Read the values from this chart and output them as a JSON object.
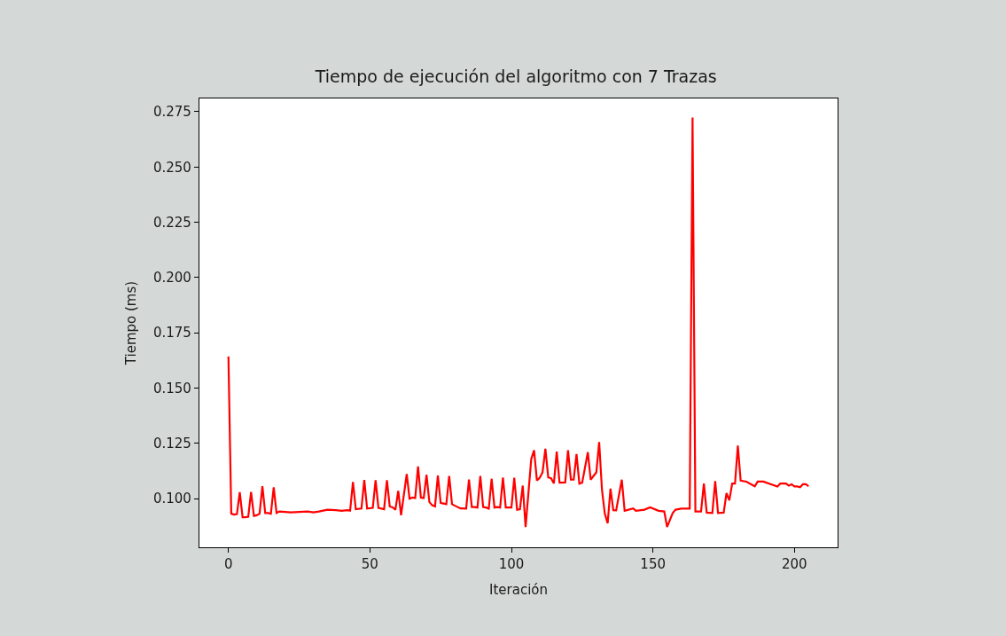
{
  "chart_data": {
    "type": "line",
    "title": "Tiempo de ejecución del algoritmo con 7 Trazas",
    "xlabel": "Iteración",
    "ylabel": "Tiempo (ms)",
    "x": [
      0,
      1,
      2,
      3,
      4,
      5,
      6,
      7,
      8,
      9,
      10,
      11,
      12,
      13,
      14,
      15,
      16,
      17,
      18,
      20,
      22,
      25,
      28,
      30,
      32,
      35,
      38,
      40,
      42,
      43,
      44,
      45,
      47,
      48,
      49,
      51,
      52,
      53,
      55,
      56,
      57,
      58,
      59,
      60,
      61,
      63,
      64,
      65,
      66,
      67,
      68,
      69,
      70,
      71,
      72,
      73,
      74,
      75,
      76,
      77,
      78,
      79,
      80,
      82,
      84,
      85,
      86,
      87,
      88,
      89,
      90,
      91,
      92,
      93,
      94,
      95,
      96,
      97,
      98,
      99,
      100,
      101,
      102,
      103,
      104,
      105,
      107,
      108,
      109,
      110,
      111,
      112,
      113,
      114,
      115,
      116,
      117,
      119,
      120,
      121,
      122,
      123,
      124,
      125,
      127,
      128,
      130,
      131,
      132,
      133,
      134,
      135,
      136,
      137,
      139,
      140,
      143,
      144,
      147,
      149,
      152,
      154,
      155,
      157,
      158,
      160,
      163,
      164,
      165,
      167,
      168,
      169,
      171,
      172,
      173,
      175,
      176,
      177,
      178,
      179,
      180,
      181,
      183,
      186,
      187,
      189,
      194,
      195,
      197,
      198,
      199,
      200,
      201,
      202,
      203,
      204,
      205
    ],
    "series": [
      {
        "color": "#ff0000",
        "values": [
          0.1643,
          0.0932,
          0.0928,
          0.093,
          0.1029,
          0.0916,
          0.0916,
          0.0918,
          0.103,
          0.0922,
          0.0925,
          0.0932,
          0.1056,
          0.0935,
          0.0935,
          0.0932,
          0.1051,
          0.0935,
          0.0942,
          0.094,
          0.0938,
          0.094,
          0.0942,
          0.0938,
          0.0942,
          0.095,
          0.0948,
          0.0945,
          0.0948,
          0.0946,
          0.1075,
          0.0952,
          0.0955,
          0.1084,
          0.0955,
          0.0958,
          0.1083,
          0.0958,
          0.0952,
          0.1083,
          0.0965,
          0.0961,
          0.095,
          0.1035,
          0.0925,
          0.1111,
          0.1,
          0.1005,
          0.1003,
          0.1146,
          0.1005,
          0.1003,
          0.1108,
          0.0985,
          0.097,
          0.0965,
          0.1105,
          0.098,
          0.0978,
          0.0975,
          0.1103,
          0.0975,
          0.0968,
          0.0956,
          0.0955,
          0.1086,
          0.0962,
          0.0962,
          0.096,
          0.1103,
          0.0962,
          0.096,
          0.0955,
          0.109,
          0.096,
          0.0962,
          0.096,
          0.1096,
          0.096,
          0.096,
          0.096,
          0.1095,
          0.095,
          0.0952,
          0.1059,
          0.0872,
          0.1179,
          0.1219,
          0.1082,
          0.1095,
          0.1119,
          0.1226,
          0.1096,
          0.1092,
          0.1069,
          0.1213,
          0.1072,
          0.1073,
          0.1219,
          0.1086,
          0.1086,
          0.1202,
          0.1068,
          0.1072,
          0.121,
          0.1086,
          0.1119,
          0.1256,
          0.1039,
          0.0932,
          0.0889,
          0.1045,
          0.0948,
          0.0947,
          0.1086,
          0.0945,
          0.0956,
          0.0945,
          0.095,
          0.0961,
          0.0945,
          0.0942,
          0.0872,
          0.0935,
          0.095,
          0.0955,
          0.0955,
          0.2724,
          0.0942,
          0.0942,
          0.1068,
          0.0937,
          0.0935,
          0.1079,
          0.0935,
          0.0937,
          0.1025,
          0.0992,
          0.1068,
          0.1068,
          0.124,
          0.1082,
          0.1077,
          0.1056,
          0.1077,
          0.1077,
          0.1055,
          0.1068,
          0.1068,
          0.1059,
          0.1065,
          0.1055,
          0.1055,
          0.1052,
          0.1065,
          0.1065,
          0.1056
        ]
      }
    ],
    "xlim": [
      -10.25,
      215.25
    ],
    "ylim": [
      0.078,
      0.281
    ],
    "xticks": [
      0,
      50,
      100,
      150,
      200
    ],
    "yticks": [
      {
        "value": 0.1,
        "label": "0.100"
      },
      {
        "value": 0.125,
        "label": "0.125"
      },
      {
        "value": 0.15,
        "label": "0.150"
      },
      {
        "value": 0.175,
        "label": "0.175"
      },
      {
        "value": 0.2,
        "label": "0.200"
      },
      {
        "value": 0.225,
        "label": "0.225"
      },
      {
        "value": 0.25,
        "label": "0.250"
      },
      {
        "value": 0.275,
        "label": "0.275"
      }
    ],
    "marker": "none",
    "line_style": "solid"
  }
}
